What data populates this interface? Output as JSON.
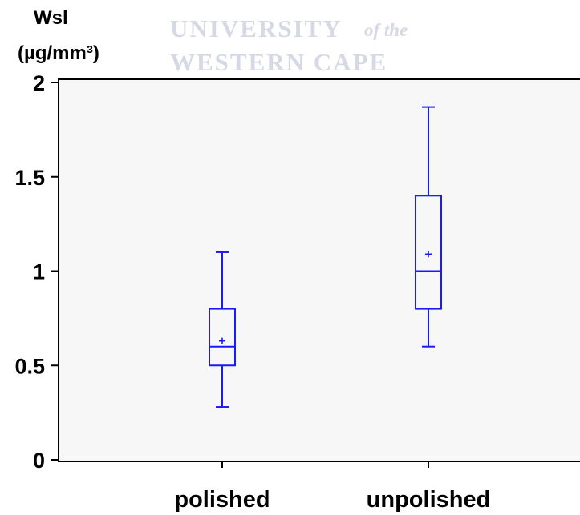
{
  "watermark": {
    "line1": "UNIVERSITY",
    "line1_italic": "of the",
    "line2": "WESTERN CAPE"
  },
  "chart_data": {
    "type": "box",
    "ylabel_line1": "Wsl",
    "ylabel_line2": "(µg/mm³)",
    "ylim": [
      0,
      2
    ],
    "yticks": [
      0,
      0.5,
      1,
      1.5,
      2
    ],
    "ytick_labels": [
      "0",
      "0.5",
      "1",
      "1.5",
      "2"
    ],
    "categories": [
      "polished",
      "unpolished"
    ],
    "series": [
      {
        "category": "polished",
        "min": 0.28,
        "q1": 0.5,
        "median": 0.6,
        "q3": 0.8,
        "max": 1.1,
        "mean": 0.63
      },
      {
        "category": "unpolished",
        "min": 0.6,
        "q1": 0.8,
        "median": 1.0,
        "q3": 1.4,
        "max": 1.87,
        "mean": 1.09
      }
    ],
    "box_color": "#1a1aff",
    "plot_bg": "#f7f7f7",
    "grid": false
  }
}
